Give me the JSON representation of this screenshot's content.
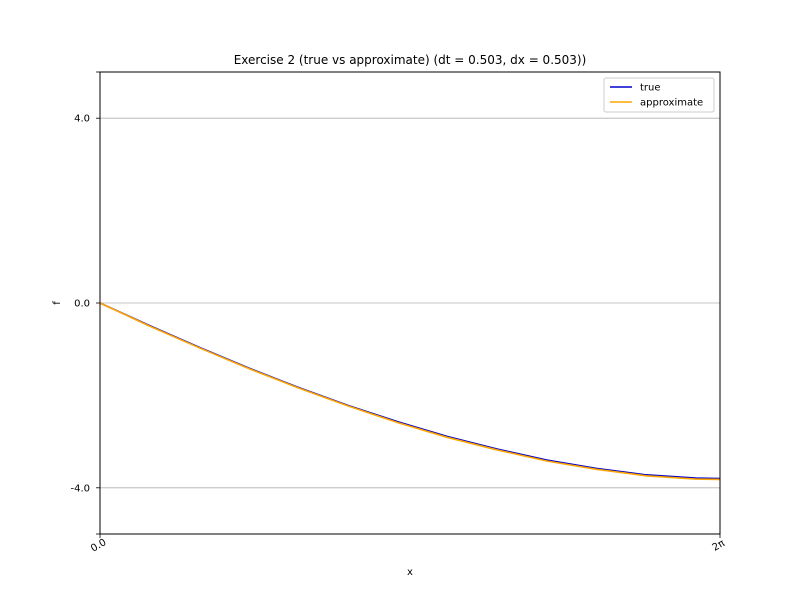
{
  "chart_data": {
    "type": "line",
    "title": "Exercise 2 (true vs approximate) (dt = 0.503, dx = 0.503))",
    "xlabel": "x",
    "ylabel": "f",
    "xlim": [
      0,
      6.2832
    ],
    "ylim": [
      -5,
      5
    ],
    "xticks": [
      {
        "value": 0,
        "label": "0.0"
      },
      {
        "value": 6.2832,
        "label": "2π"
      }
    ],
    "yticks": [
      {
        "value": 4,
        "label": "4.0"
      },
      {
        "value": 0,
        "label": "0.0"
      },
      {
        "value": -4,
        "label": "-4.0"
      }
    ],
    "grid": "horizontal",
    "legend": "top-right",
    "x": [
      0,
      0.503,
      1.006,
      1.509,
      2.012,
      2.515,
      3.018,
      3.521,
      4.024,
      4.527,
      5.03,
      5.533,
      6.036,
      6.2832
    ],
    "series": [
      {
        "name": "true",
        "color": "#0000cd",
        "values": [
          0,
          -0.49,
          -0.96,
          -1.41,
          -1.83,
          -2.22,
          -2.57,
          -2.89,
          -3.16,
          -3.4,
          -3.58,
          -3.72,
          -3.79,
          -3.8
        ]
      },
      {
        "name": "approximate",
        "color": "#ffa500",
        "values": [
          0,
          -0.5,
          -0.97,
          -1.42,
          -1.84,
          -2.23,
          -2.59,
          -2.91,
          -3.18,
          -3.42,
          -3.6,
          -3.74,
          -3.81,
          -3.82
        ]
      }
    ]
  }
}
